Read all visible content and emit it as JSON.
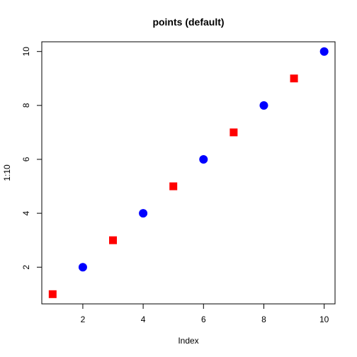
{
  "chart_data": {
    "type": "scatter",
    "title": "points (default)",
    "xlabel": "Index",
    "ylabel": "1:10",
    "xlim": [
      0.64,
      10.36
    ],
    "ylim": [
      0.64,
      10.36
    ],
    "x_ticks": [
      2,
      4,
      6,
      8,
      10
    ],
    "y_ticks": [
      2,
      4,
      6,
      8,
      10
    ],
    "grid": false,
    "legend": "none",
    "points": [
      {
        "x": 1,
        "y": 1,
        "shape": "square",
        "color": "#ff0000"
      },
      {
        "x": 2,
        "y": 2,
        "shape": "circle",
        "color": "#0000ff"
      },
      {
        "x": 3,
        "y": 3,
        "shape": "square",
        "color": "#ff0000"
      },
      {
        "x": 4,
        "y": 4,
        "shape": "circle",
        "color": "#0000ff"
      },
      {
        "x": 5,
        "y": 5,
        "shape": "square",
        "color": "#ff0000"
      },
      {
        "x": 6,
        "y": 6,
        "shape": "circle",
        "color": "#0000ff"
      },
      {
        "x": 7,
        "y": 7,
        "shape": "square",
        "color": "#ff0000"
      },
      {
        "x": 8,
        "y": 8,
        "shape": "circle",
        "color": "#0000ff"
      },
      {
        "x": 9,
        "y": 9,
        "shape": "square",
        "color": "#ff0000"
      },
      {
        "x": 10,
        "y": 10,
        "shape": "circle",
        "color": "#0000ff"
      }
    ]
  }
}
